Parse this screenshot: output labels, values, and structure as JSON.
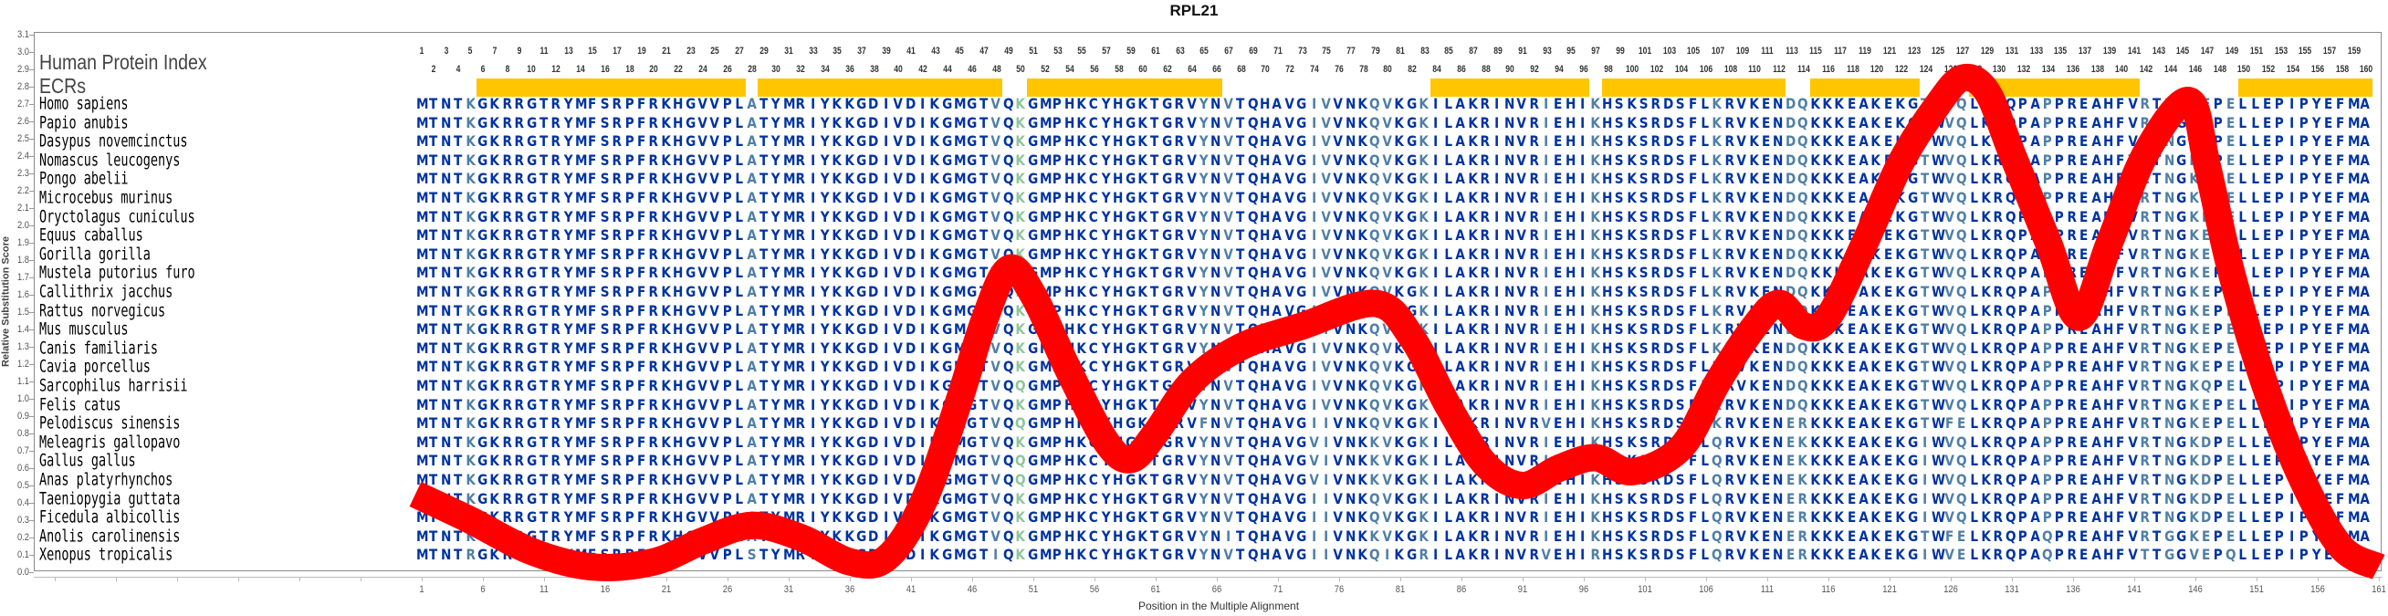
{
  "title": "RPL21",
  "header": {
    "protein_index_label": "Human Protein Index",
    "ecr_label": "ECRs",
    "index_start": 1,
    "index_end": 160
  },
  "ecrs": [
    [
      6,
      27
    ],
    [
      29,
      48
    ],
    [
      51,
      66
    ],
    [
      84,
      96
    ],
    [
      98,
      112
    ],
    [
      115,
      123
    ],
    [
      128,
      141
    ],
    [
      150,
      160
    ]
  ],
  "colors": {
    "conserved": "#0033a0",
    "variable": "#4f7fa6",
    "highlight": "#8fc49c",
    "ecr": "#ffc600",
    "curve": "#ff0000"
  },
  "highlight_position": 50,
  "species": [
    {
      "name": "Homo sapiens",
      "seq": "MTNTKGKRRGTRYMFSRPFRKHGVVPLATYMRIYKKGDIVDIKGMGTVQKGMPHKCYHGKTGRVYNVTQHAVGIVVNKQVKGKILAKRINVRIEHIKHSKSRDSFLKRVKENDQKKKEAKEKGTWVQLKRQPAPPREAHFVRTNGKEPELLEPIPYEFMA"
    },
    {
      "name": "Papio anubis",
      "seq": "MTNTKGKRRGTRYMFSRPFRKHGVVPLATYMRIYKKGDIVDIKGMGTVQKGMPHKCYHGKTGRVYNVTQHAVGIVVNKQVKGKILAKRINVRIEHIKHSKSRDSFLKRVKENDQKKKEAKEKGTWVQLKRQPAPPREAHFVRTNGKEPELLEPIPYEFMA"
    },
    {
      "name": "Dasypus novemcinctus",
      "seq": "MTNTKGKRRGTRYMFSRPFRKHGVVPLATYMRIYKKGDIVDIKGMGTVQKGMPHKCYHGKTGRVYNVTQHAVGIVVNKQVKGKILAKRINVRIEHIKHSKSRDSFLKRVKENDQKKKEAKEKGTWVQLKRQPAPPREAHFVRTNGKEPELLEPIPYEFMA"
    },
    {
      "name": "Nomascus leucogenys",
      "seq": "MTNTKGKRRGTRYMFSRPFRKHGVVPLATYMRIYKKGDIVDIKGMGTVQKGMPHKCYHGKTGRVYNVTQHAVGIVVNKQVKGKILAKRINVRIEHIKHSKSRDSFLKRVKENDQKKKEAKEKGTWVQLKRQPAPPREAHFVRTNGKEPELLEPIPYEFMA"
    },
    {
      "name": "Pongo abelii",
      "seq": "MTNTKGKRRGTRYMFSRPFRKHGVVPLATYMRIYKKGDIVDIKGMGTVQKGMPHKCYHGKTGRVYNVTQHAVGIVVNKQVKGKILAKRINVRIEHIKHSKSRDSFLKRVKENDQKKKEAKEKGTWVQLKRQPAPPREAHFVRTNGKEPELLEPIPYEFMA"
    },
    {
      "name": "Microcebus murinus",
      "seq": "MTNTKGKRRGTRYMFSRPFRKHGVVPLATYMRIYKKGDIVDIKGMGTVQKGMPHKCYHGKTGRVYNVTQHAVGIVVNKQVKGKILAKRINVRIEHIKHSKSRDSFLKRVKENDQKKKEAKEKGTWVQLKRQPAPPREAHFVRTNGKEPELLEPIPYEFMA"
    },
    {
      "name": "Oryctolagus cuniculus",
      "seq": "MTNTKGKRRGTRYMFSRPFRKHGVVPLATYMRIYKKGDIVDIKGMGTVQKGMPHKCYHGKTGRVYNVTQHAVGIVVNKQVKGKILAKRINVRIEHIKHSKSRDSFLKRVKENDQKKKEAKEKGTWVQLKRQPAPPREAHFVRTNGKEPELLEPIPYEFMA"
    },
    {
      "name": "Equus caballus",
      "seq": "MTNTKGKRRGTRYMFSRPFRKHGVVPLATYMRIYKKGDIVDIKGMGTVQKGMPHKCYHGKTGRVYNVTQHAVGIVVNKQVKGKILAKRINVRIEHIKHSKSRDSFLKRVKENDQKKKEAKEKGTWVQLKRQPAPPREAHFVRTNGKEPELLEPIPYEFMA"
    },
    {
      "name": "Gorilla gorilla",
      "seq": "MTNTKGKRRGTRYMFSRPFRKHGVVPLATYMRIYKKGDIVDIKGMGTVQKGMPHKCYHGKTGRVYNVTQHAVGIVVNKQVKGKILAKRINVRIEHIKHSKSRDSFLKRVKENDQKKKEAKEKGTWVQLKRQPAPPREAHFVRTNGKEPELLEPIPYEFMA"
    },
    {
      "name": "Mustela putorius furo",
      "seq": "MTNTKGKRRGTRYMFSRPFRKHGVVPLATYMRIYKKGDIVDIKGMGTVQKGMPHKCYHGKTGRVYNVTQHAVGIVVNKQVKGKILAKRINVRIEHIKHSKSRDSFLKRVKENDQKKKEAKEKGTWVQLKRQPAPPREAHFVRTNGKEPELLEPIPYEFMA"
    },
    {
      "name": "Callithrix jacchus",
      "seq": "MTNTKGKRRGTRYMFSRPFRKHGVVPLATYMRIYKKGDIVDIKGMGTVQKGMPHKCYHGKTGRVYNVTQHAVGIVVNKQVKGKILAKRINVRIEHIKHSKSRDSFLKRVKENDQKKKEAKEKGTWVQLKRQPAPPREAHFVRTNGKEPELLEPIPYEFMA"
    },
    {
      "name": "Rattus norvegicus",
      "seq": "MTNTKGKRRGTRYMFSRPFRKHGVVPLATYMRIYKKGDIVDIKGMGTVQKGMPHKCYHGKTGRVYNVTQHAVGIIVNKQVKGKILAKRINVRIEHIKHSKSRDSFLKRVKENDQKKKEAKEKGTWVQLKRQPAPPREAHFVRTNGKEPELLEPIPYEFMA"
    },
    {
      "name": "Mus musculus",
      "seq": "MTNTKGKRRGTRYMFSRPFRKHGVVPLATYMRIYKKGDIVDIKGMGTVQKGMPHKCYHGKTGRVYNVTQHAVGIIVNKQVKGKILAKRINVRIEHIKHSKSRDSFLKRVKENDQKKKEAKEKGTWVQLKRQPAPPREAHFVRTNGKEPELLEPIPYEFMA"
    },
    {
      "name": "Canis familiaris",
      "seq": "MTNTKGKRRGTRYMFSRPFRKHGVVPLATYMRIYKKGDIVDIKGMGTVQKGMPHKCYHGKTGRVYNDTQHAVGIVVNKQVKGKILAKRINVRIEHIKHSKSRDSFLKRVKENDQKKKEAKEKGTWVQLKRQPAPPREAHFVRTNGKEPELLEPIPYEFMA"
    },
    {
      "name": "Cavia porcellus",
      "seq": "MTNTKGKRRGTRYMFSRPFRKHGVVPLATYMRIYKKGDIVDIKGMGTVQKGMPHKCYHGKTGRVYNVTQHAVGIVVNKQVKGKILAKRINVRIEHIKHSKSRDSFLKRVKENDQKKKEAKEKGTWVQLKRQPAPPREAHFVRTNGKEPELLEPIPYEFMA"
    },
    {
      "name": "Sarcophilus harrisii",
      "seq": "MTNTKGKRRGTRYMFSRPFRKHGVVPLATYMRIYKKGDIVDIKGMGTVQQGMPHKCYHGKTGRVYNVTQHAVGIVVNKQVKGKILAKRINVRIEHIKHSKSRDSFLKRVKENDQKKKEAKEKGTWVQLKRQPAPPREAHFVRTNGKQPELLEPIPYEFMA"
    },
    {
      "name": "Felis catus",
      "seq": "MTNTKGKRRGTRYMFSRPFRKHGVVPLATYMRIYKKGDIVDIKGMGTVQKGMPHKCYHGKTGRVYNVTQHAVGIVVNKQVKGKILAKRINVRIEHIKHSKSRDSFLKRVKENDQKKKEAKEKGTWVQLKRQPAPPREAHFVRTNGKEPELLEPIPYEFMA"
    },
    {
      "name": "Pelodiscus sinensis",
      "seq": "MTNTKGKRRGTRYMFSRPFRKHGVVPLATYMRIYKKGDIVDIKGMGTVQQGMPHKCYHGKTGRVFNVTQHAVGIIVNKQVKGKILAKRINVRVEHIKHSKSRDSFLKRVKENERKKKEAKEKGTWFELKRQPAPPREAHFVRTNGKEPELLEPIPYEFMA"
    },
    {
      "name": "Meleagris gallopavo",
      "seq": "MTNTKGKRRGTRYMFSRPFRKHGVVPLATYMRIYKKGDIVDIKGMGTVQKGMPHKCYHGKTGRVYNVTQHAVGVIVNKKVKGKILAKRINVRIEHIKHSKSRDSFLQRVKENEKKKKEAKEKGIWVQLKRQPAPPREAHFVRTNGKDPELLEPIPYEFMA"
    },
    {
      "name": "Gallus gallus",
      "seq": "MTNTKGKRRGTRYMFSRPFRKHGVVPLATYMRIYKKGDIVDIKGMGTVQQGMPHKCYHGKTGRVYNVTQHAVGVIVNKKVKGKILAKRINVRIEHIKHSKSRDSFLQRVKENEKKKKEAKEKGIWVQLKRQPAPPREAHFVRTNGKDPELLEPIPYEFMA"
    },
    {
      "name": "Anas platyrhynchos",
      "seq": "MTNTKGKRRGTRYMFSRPFRKHGVVPLATYMRIYKKGDIVDIKGMGTVQQGMPHKCYHGKTGRVYNVTQHAVGVIVNKKVKGKILAKRINVRIEHIKHSKSRDSFLQRVKENEKKKKEAKEKGIWVQLKRQPAPPREAHFVRTNGKDPELLEPIPYEFMA"
    },
    {
      "name": "Taeniopygia guttata",
      "seq": "MTNTKGKRRGTRYMFSRPFRKHGVVPLATYMRIYKKGDIVDIKGMGTVQKGMPHKCYHGKTGRVYNVTQHAVGIIVNKQVKGKILAKRINVRIEHIKHSKSRDSFLQRVKENERKKKEAKEKGIWVQLKRQPAPPREAHFVRTNGKDPELLEPIPYEFMA"
    },
    {
      "name": "Ficedula albicollis",
      "seq": "MTNTKGKRRGTRYMFSRPFRKHGVVPLATYMRIYKKGDIVDIKGMGTVQKGMPHKCYHGKTGRVYNVTQHAVGIIVNKQVKGKILAKRINVRIEHIKHSKSRDSFLQRVKENERKKKEAKEKGIWVQLKRQPAPPREAHFVRTNGKDPELLEPIPYEFMA"
    },
    {
      "name": "Anolis carolinensis",
      "seq": "MTNTKGKRRGTRYMFSRPFRKHGVVPLATYMRIYKKGDIVDIKGMGTVQKGMPHKCYHGKTGRVYNITQHAVGIIVNKKVKGKILAKRINVRIEHIKHSKSRDSFLQRVKENERKKKEAKEKGTWFELKRQPAQPREAHFVRTGGKEPELLEPIPYEFMA"
    },
    {
      "name": "Xenopus tropicalis",
      "seq": "MTNTRGKRRGTRYMFSRPFRKHGVVPLSTYMRIYKKGDIVDIKGMGTIQKGMPHKCYHGKTGRVYNVTQHAVGIIVNKQIKGRILAKRINVRVEHIRHSKSRDSFLQRVKENERKKKEAKEKGIWVELKRQPAQPREAHFVTTGGVEPQLLEPIPYEFMA"
    }
  ],
  "chart_data": {
    "type": "line",
    "title": "RPL21",
    "xlabel": "Position in the Multiple Alignment",
    "ylabel": "Relative Substitution Score",
    "xlim": [
      1,
      161
    ],
    "ylim": [
      0.0,
      3.1
    ],
    "xticks": [
      1,
      6,
      11,
      16,
      21,
      26,
      31,
      36,
      41,
      46,
      51,
      56,
      61,
      66,
      71,
      76,
      81,
      86,
      91,
      96,
      101,
      106,
      111,
      116,
      121,
      126,
      131,
      136,
      141,
      146,
      151,
      156,
      161
    ],
    "yticks": [
      "0.0",
      "0.1",
      "0.2",
      "0.3",
      "0.4",
      "0.5",
      "0.6",
      "0.7",
      "0.8",
      "0.9",
      "1.0",
      "1.1",
      "1.2",
      "1.3",
      "1.4",
      "1.5",
      "1.6",
      "1.7",
      "1.8",
      "1.9",
      "2.0",
      "2.1",
      "2.2",
      "2.3",
      "2.4",
      "2.5",
      "2.6",
      "2.7",
      "2.8",
      "2.9",
      "3.0",
      "3.1"
    ],
    "grid": false,
    "series": [
      {
        "name": "Relative Substitution Score",
        "x": [
          0.5,
          5,
          10,
          15,
          20,
          24,
          28,
          32,
          36,
          39,
          42,
          45,
          47,
          49,
          51,
          54,
          57,
          59,
          61,
          64,
          68,
          73,
          79,
          82,
          85,
          88,
          91,
          94,
          97,
          100,
          104,
          107,
          110,
          112,
          114,
          116,
          119,
          122,
          125,
          127,
          129,
          131,
          134,
          136.5,
          139,
          142,
          145.5,
          147,
          149,
          152,
          155,
          158,
          161
        ],
        "y": [
          0.45,
          0.3,
          0.12,
          0.03,
          0.06,
          0.18,
          0.27,
          0.2,
          0.06,
          0.08,
          0.4,
          1.0,
          1.45,
          1.75,
          1.6,
          1.15,
          0.75,
          0.65,
          0.8,
          1.1,
          1.3,
          1.42,
          1.55,
          1.35,
          0.95,
          0.62,
          0.5,
          0.6,
          0.66,
          0.58,
          0.72,
          1.1,
          1.42,
          1.55,
          1.42,
          1.47,
          1.9,
          2.37,
          2.7,
          2.85,
          2.77,
          2.42,
          1.9,
          1.47,
          1.9,
          2.42,
          2.72,
          2.34,
          1.72,
          1.02,
          0.5,
          0.14,
          0.03
        ]
      }
    ]
  }
}
